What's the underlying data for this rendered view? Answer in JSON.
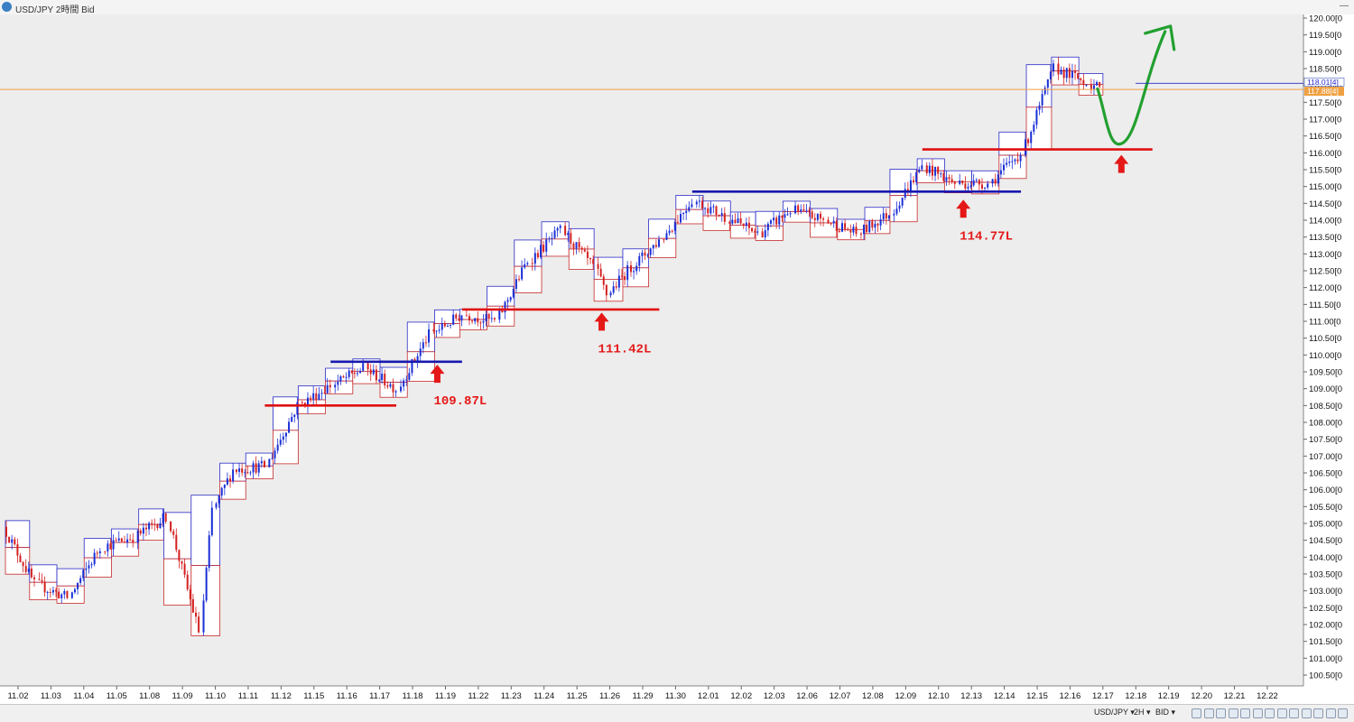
{
  "window": {
    "title": "USD/JPY 2時間 Bid",
    "controls": "—"
  },
  "bottom_bar": {
    "symbol": "USD/JPY ▾",
    "timeframe": "2H ▾",
    "price_side": "BID ▾",
    "tools": [
      "scroll-icon",
      "candle-icon",
      "bar-icon",
      "line-icon",
      "cursor-icon",
      "draw-icon",
      "zoom-in-icon",
      "zoom-out-icon",
      "crosshair-icon",
      "flag-icon",
      "arrow-icon",
      "settings-icon",
      "search-icon"
    ]
  },
  "chart_data": {
    "type": "candlestick",
    "symbol": "USD/JPY",
    "timeframe": "2H",
    "x_ticks": [
      "11.02",
      "11.03",
      "11.04",
      "11.05",
      "11.08",
      "11.09",
      "11.10",
      "11.11",
      "11.12",
      "11.15",
      "11.16",
      "11.17",
      "11.18",
      "11.19",
      "11.22",
      "11.23",
      "11.24",
      "11.25",
      "11.26",
      "11.29",
      "11.30",
      "12.01",
      "12.02",
      "12.03",
      "12.06",
      "12.07",
      "12.08",
      "12.09",
      "12.10",
      "12.13",
      "12.14",
      "12.15",
      "12.16",
      "12.17",
      "12.18",
      "12.19",
      "12.20",
      "12.21",
      "12.22"
    ],
    "y_axis": {
      "min": 100.5,
      "max": 120.0,
      "step": 0.5,
      "tick_labels": [
        "120.00[0",
        "119.50[0",
        "119.00[0",
        "118.50[0",
        "118.00[0",
        "117.50[0",
        "117.00[0",
        "116.50[0",
        "116.00[0",
        "115.50[0",
        "115.00[0",
        "114.50[0",
        "114.00[0",
        "113.50[0",
        "113.00[0",
        "112.50[0",
        "112.00[0",
        "111.50[0",
        "111.00[0",
        "110.50[0",
        "110.00[0",
        "109.50[0",
        "109.00[0",
        "108.50[0",
        "108.00[0",
        "107.50[0",
        "107.00[0",
        "106.50[0",
        "106.00[0",
        "105.50[0",
        "105.00[0",
        "104.50[0",
        "104.00[0",
        "103.50[0",
        "103.00[0",
        "102.50[0",
        "102.00[0",
        "101.50[0",
        "101.00[0",
        "100.50[0"
      ]
    },
    "current_prices": {
      "ask_label": "118.01[4]",
      "bid_label": "117.88[4]",
      "ask": 118.01,
      "bid": 117.88
    },
    "price_path": [
      [
        "11.02",
        104.9
      ],
      [
        "11.03",
        103.2
      ],
      [
        "11.04",
        102.8
      ],
      [
        "11.05",
        104.3
      ],
      [
        "11.08",
        104.6
      ],
      [
        "11.09",
        105.2
      ],
      [
        "11.10",
        101.8
      ],
      [
        "11.10",
        105.4
      ],
      [
        "11.11",
        106.6
      ],
      [
        "11.12",
        106.7
      ],
      [
        "11.15",
        108.5
      ],
      [
        "11.16",
        109.1
      ],
      [
        "11.17",
        109.6
      ],
      [
        "11.18",
        109.0
      ],
      [
        "11.19",
        110.6
      ],
      [
        "11.22",
        111.2
      ],
      [
        "11.23",
        111.0
      ],
      [
        "11.24",
        112.8
      ],
      [
        "11.25",
        113.7
      ],
      [
        "11.26",
        112.6
      ],
      [
        "11.26",
        111.8
      ],
      [
        "11.29",
        112.5
      ],
      [
        "11.30",
        113.4
      ],
      [
        "12.01",
        114.6
      ],
      [
        "12.02",
        114.1
      ],
      [
        "12.03",
        113.6
      ],
      [
        "12.06",
        114.3
      ],
      [
        "12.07",
        114.0
      ],
      [
        "12.08",
        113.6
      ],
      [
        "12.09",
        114.2
      ],
      [
        "12.10",
        115.6
      ],
      [
        "12.13",
        115.1
      ],
      [
        "12.14",
        115.1
      ],
      [
        "12.15",
        116.0
      ],
      [
        "12.16",
        118.5
      ],
      [
        "12.17",
        118.1
      ],
      [
        "12.17",
        117.88
      ]
    ],
    "level_lines": [
      {
        "price": 108.5,
        "color": "#e01010",
        "from": "11.12",
        "to": "11.18"
      },
      {
        "price": 109.8,
        "color": "#1818b0",
        "from": "11.16",
        "to": "11.22"
      },
      {
        "price": 111.35,
        "color": "#e01010",
        "from": "11.22",
        "to": "11.30"
      },
      {
        "price": 114.85,
        "color": "#1818b0",
        "from": "12.01",
        "to": "12.15"
      },
      {
        "price": 116.1,
        "color": "#e01010",
        "from": "12.10",
        "to": "12.19"
      },
      {
        "price": 117.88,
        "color": "#f0a040",
        "from": "11.02",
        "to": "12.22"
      }
    ],
    "annotations": [
      {
        "text": "109.87L",
        "x": "11.19",
        "price": 109.87
      },
      {
        "text": "111.42L",
        "x": "11.26",
        "price": 111.42
      },
      {
        "text": "114.77L",
        "x": "12.13",
        "price": 114.77
      }
    ],
    "forecast_arrow": {
      "color": "#22a030",
      "path": [
        [
          "12.17",
          117.9
        ],
        [
          "12.18",
          116.3
        ],
        [
          "12.19",
          119.6
        ]
      ]
    },
    "grid": false
  }
}
